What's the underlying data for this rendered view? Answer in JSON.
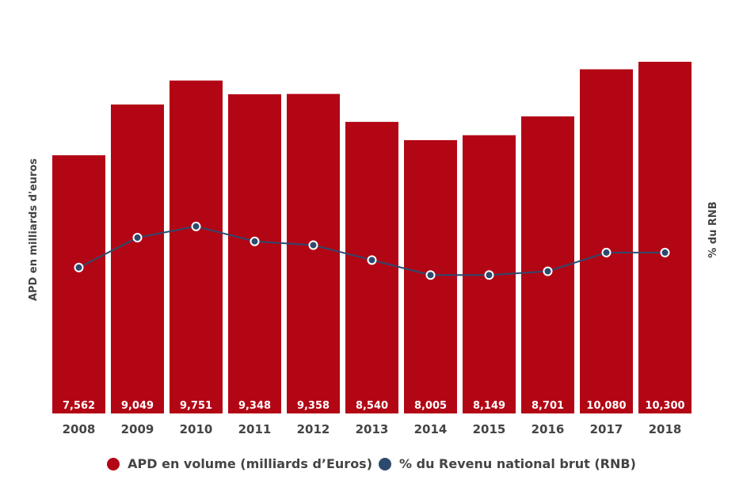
{
  "chart_data": {
    "type": "bar",
    "title": "",
    "xlabel": "",
    "ylabel": "APD en milliards d'euros",
    "y2label": "% du RNB",
    "categories": [
      "2008",
      "2009",
      "2010",
      "2011",
      "2012",
      "2013",
      "2014",
      "2015",
      "2016",
      "2017",
      "2018"
    ],
    "series": [
      {
        "name": "APD en volume (milliards d’Euros)",
        "type": "bar",
        "axis": "left",
        "color": "#b30615",
        "values": [
          7562,
          9049,
          9751,
          9348,
          9358,
          8540,
          8005,
          8149,
          8701,
          10080,
          10300
        ],
        "labels": [
          "7,562",
          "9,049",
          "9,751",
          "9,348",
          "9,358",
          "8,540",
          "8,005",
          "8,149",
          "8,701",
          "10,080",
          "10,300"
        ]
      },
      {
        "name": "% du Revenu national brut (RNB)",
        "type": "line",
        "axis": "right",
        "color": "#2d4a6e",
        "values": [
          0.39,
          0.47,
          0.5,
          0.46,
          0.45,
          0.41,
          0.37,
          0.37,
          0.38,
          0.43,
          0.43
        ]
      }
    ],
    "ylim": [
      0,
      10300
    ],
    "y2lim": [
      0,
      0.94
    ],
    "grid": false,
    "legend_position": "bottom-center"
  }
}
